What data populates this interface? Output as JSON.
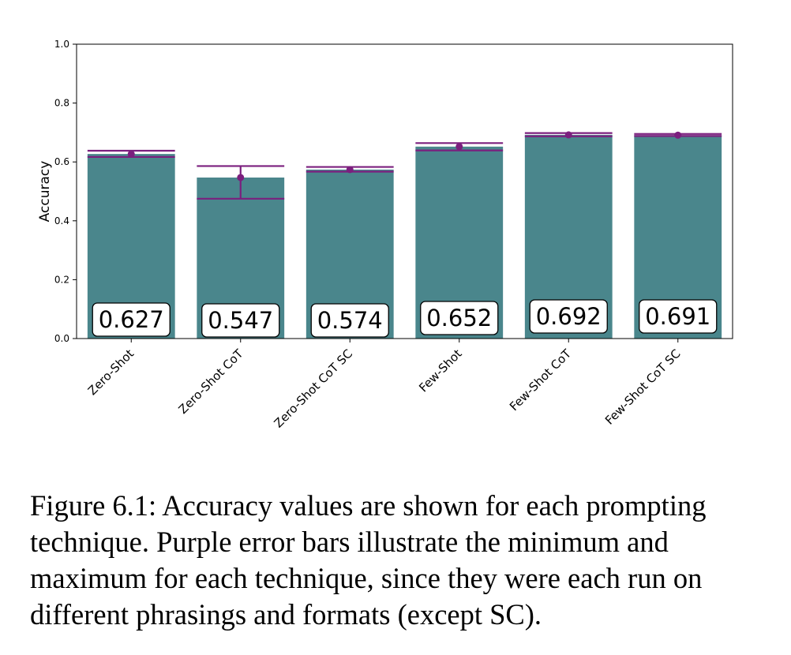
{
  "chart_data": {
    "type": "bar",
    "categories": [
      "Zero-Shot",
      "Zero-Shot CoT",
      "Zero-Shot CoT SC",
      "Few-Shot",
      "Few-Shot CoT",
      "Few-Shot CoT SC"
    ],
    "values": [
      0.627,
      0.547,
      0.574,
      0.652,
      0.692,
      0.691
    ],
    "value_labels": [
      "0.627",
      "0.547",
      "0.574",
      "0.652",
      "0.692",
      "0.691"
    ],
    "error_min": [
      0.617,
      0.475,
      0.567,
      0.639,
      0.687,
      0.688
    ],
    "error_max": [
      0.638,
      0.586,
      0.583,
      0.664,
      0.698,
      0.695
    ],
    "ylabel": "Accuracy",
    "ylim": [
      0.0,
      1.0
    ],
    "yticks": [
      "0.0",
      "0.2",
      "0.4",
      "0.6",
      "0.8",
      "1.0"
    ],
    "grid": false,
    "colors": {
      "bar": "#4a868c",
      "error": "#7b1f7e"
    }
  },
  "caption": "Figure 6.1: Accuracy values are shown for each prompting technique. Purple error bars illustrate the minimum and maximum for each technique, since they were each run on different phrasings and formats (except SC)."
}
